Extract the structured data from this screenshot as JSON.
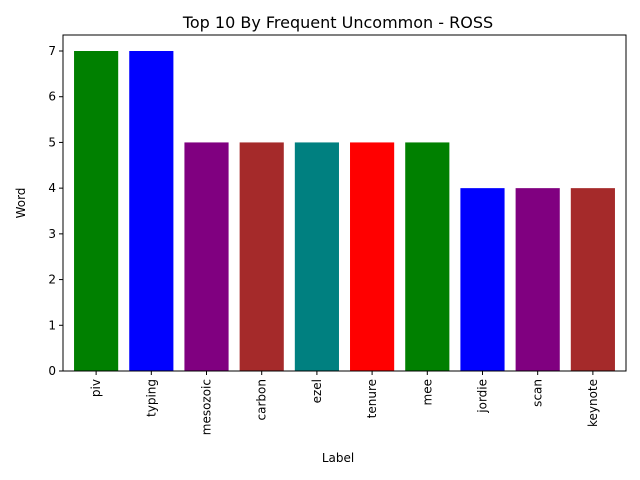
{
  "chart_data": {
    "type": "bar",
    "title": "Top 10 By Frequent Uncommon - ROSS",
    "xlabel": "Label",
    "ylabel": "Word",
    "categories": [
      "piv",
      "typing",
      "mesozoic",
      "carbon",
      "ezel",
      "tenure",
      "mee",
      "jordie",
      "scan",
      "keynote"
    ],
    "values": [
      7,
      7,
      5,
      5,
      5,
      5,
      5,
      4,
      4,
      4
    ],
    "colors": [
      "#008000",
      "#0000ff",
      "#800080",
      "#a52a2a",
      "#008080",
      "#ff0000",
      "#008000",
      "#0000ff",
      "#800080",
      "#a52a2a"
    ],
    "ylim": [
      0,
      7.35
    ],
    "yticks": [
      0,
      1,
      2,
      3,
      4,
      5,
      6,
      7
    ],
    "grid": false,
    "legend": "none"
  }
}
